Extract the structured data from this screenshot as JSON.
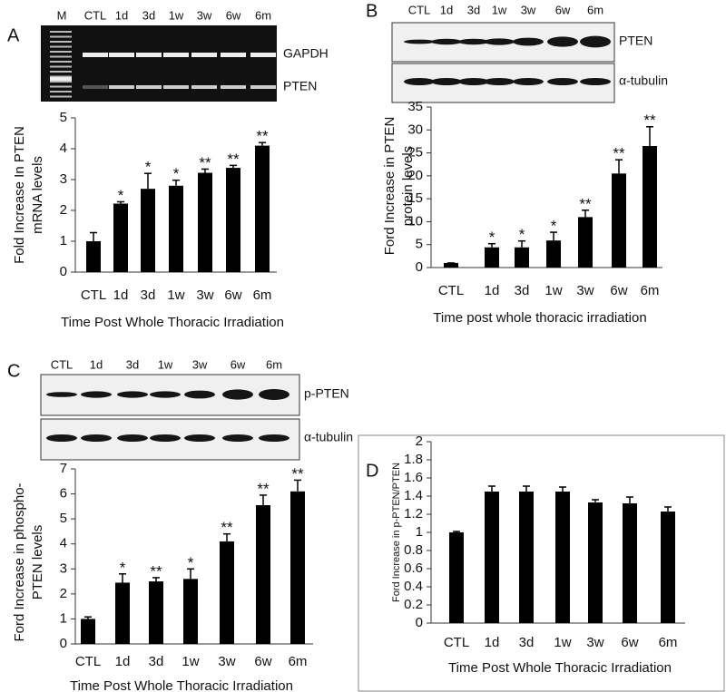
{
  "chart_data": [
    {
      "type": "bar",
      "panel": "A",
      "lanes": [
        "M",
        "CTL",
        "1d",
        "3d",
        "1w",
        "3w",
        "6w",
        "6m"
      ],
      "blot_labels": [
        "GAPDH",
        "PTEN"
      ],
      "categories": [
        "CTL",
        "1d",
        "3d",
        "1w",
        "3w",
        "6w",
        "6m"
      ],
      "values": [
        1.0,
        2.22,
        2.7,
        2.8,
        3.22,
        3.38,
        4.1
      ],
      "errors": [
        0.28,
        0.06,
        0.5,
        0.18,
        0.12,
        0.08,
        0.1
      ],
      "annotations": [
        null,
        "*",
        "*",
        "*",
        "**",
        "**",
        "**"
      ],
      "ylim": [
        0,
        5
      ],
      "yticks": [
        0,
        1,
        2,
        3,
        4,
        5
      ],
      "color": "#000000",
      "xlabel": "Time Post Whole Thoracic Irradiation",
      "ylabel": [
        "Fold Increase In PTEN",
        "mRNA levels"
      ]
    },
    {
      "type": "bar",
      "panel": "B",
      "lanes": [
        "CTL",
        "1d",
        "3d",
        "1w",
        "3w",
        "6w",
        "6m"
      ],
      "blot_labels": [
        "PTEN",
        "α-tubulin"
      ],
      "categories": [
        "CTL",
        "1d",
        "3d",
        "1w",
        "3w",
        "6w",
        "6m"
      ],
      "values": [
        1.0,
        4.4,
        4.4,
        5.9,
        11,
        20.5,
        26.5
      ],
      "errors": [
        0,
        0.8,
        1.4,
        1.8,
        1.5,
        3,
        4.2
      ],
      "annotations": [
        null,
        "*",
        "*",
        "*",
        "**",
        "**",
        "**"
      ],
      "ylim": [
        0,
        35
      ],
      "yticks": [
        0,
        5,
        10,
        15,
        20,
        25,
        30,
        35
      ],
      "color": "#000000",
      "xlabel": "Time post whole thoracic irradiation",
      "ylabel": [
        "Ford Increase in PTEN",
        "protein levels"
      ]
    },
    {
      "type": "bar",
      "panel": "C",
      "lanes": [
        "CTL",
        "1d",
        "3d",
        "1w",
        "3w",
        "6w",
        "6m"
      ],
      "blot_labels": [
        "p-PTEN",
        "α-tubulin"
      ],
      "categories": [
        "CTL",
        "1d",
        "3d",
        "1w",
        "3w",
        "6w",
        "6m"
      ],
      "values": [
        1.0,
        2.45,
        2.5,
        2.6,
        4.1,
        5.55,
        6.1
      ],
      "errors": [
        0.08,
        0.35,
        0.15,
        0.4,
        0.3,
        0.4,
        0.45
      ],
      "annotations": [
        null,
        "*",
        "**",
        "*",
        "**",
        "**",
        "**"
      ],
      "ylim": [
        0,
        7
      ],
      "yticks": [
        0,
        1,
        2,
        3,
        4,
        5,
        6,
        7
      ],
      "color": "#000000",
      "xlabel": "Time Post Whole Thoracic Irradiation",
      "ylabel": [
        "Ford Increase in phospho-",
        "PTEN levels"
      ]
    },
    {
      "type": "bar",
      "panel": "D",
      "categories": [
        "CTL",
        "1d",
        "3d",
        "1w",
        "3w",
        "6w",
        "6m"
      ],
      "values": [
        1.0,
        1.45,
        1.45,
        1.45,
        1.33,
        1.32,
        1.23
      ],
      "errors": [
        0.01,
        0.06,
        0.06,
        0.05,
        0.03,
        0.07,
        0.05
      ],
      "ylim": [
        0,
        2
      ],
      "yticks": [
        0,
        0.2,
        0.4,
        0.6,
        0.8,
        1,
        1.2,
        1.4,
        1.6,
        1.8,
        2
      ],
      "color": "#000000",
      "xlabel": "Time Post Whole Thoracic Irradiation",
      "ylabel": [
        "Ford Increase in p-PTEN/PTEN"
      ]
    }
  ]
}
